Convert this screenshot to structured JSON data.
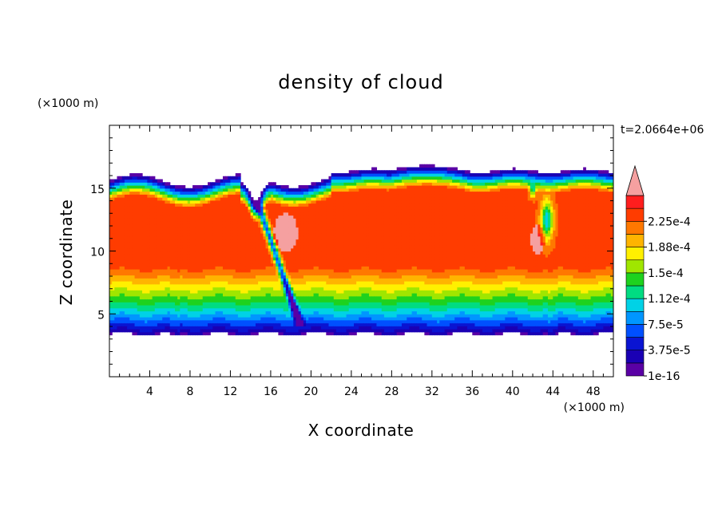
{
  "chart_data": {
    "type": "heatmap",
    "title": "density of cloud",
    "xlabel": "X coordinate",
    "ylabel": "Z coordinate",
    "x_unit": "(×1000 m)",
    "y_unit": "(×1000 m)",
    "time_label": "t=2.0664e+06",
    "xlim": [
      0,
      50
    ],
    "ylim": [
      0,
      20
    ],
    "x_ticks": [
      4,
      8,
      12,
      16,
      20,
      24,
      28,
      32,
      36,
      40,
      44,
      48
    ],
    "x_tick_labels": [
      "4",
      "8",
      "12",
      "16",
      "20",
      "24",
      "28",
      "32",
      "36",
      "40",
      "44",
      "48"
    ],
    "y_ticks": [
      5,
      10,
      15
    ],
    "y_tick_labels": [
      "5",
      "10",
      "15"
    ],
    "cloud_base": 3.4,
    "cloud_top": 16.4,
    "colorbar": {
      "levels": [
        1e-16,
        1.875e-05,
        3.75e-05,
        5.625e-05,
        7.5e-05,
        9.375e-05,
        0.0001125,
        0.00013125,
        0.00015,
        0.00016875,
        0.0001875,
        0.00020625,
        0.000225,
        0.00024375
      ],
      "colors": [
        "#5a00a5",
        "#1a00b4",
        "#0a14d2",
        "#0050ff",
        "#0096ff",
        "#00d2e6",
        "#00dc82",
        "#1ed21e",
        "#a0e600",
        "#fff000",
        "#ffb400",
        "#ff7800",
        "#ff3c00",
        "#ff1e1e"
      ],
      "over_color": "#f5a0a0",
      "tick_labels": [
        "2.25e-4",
        "1.88e-4",
        "1.5e-4",
        "1.12e-4",
        "7.5e-5",
        "3.75e-5",
        "1e-16"
      ],
      "tick_values": [
        0.000225,
        0.0001875,
        0.00015,
        0.0001125,
        7.5e-05,
        3.75e-05,
        1e-16
      ]
    }
  }
}
